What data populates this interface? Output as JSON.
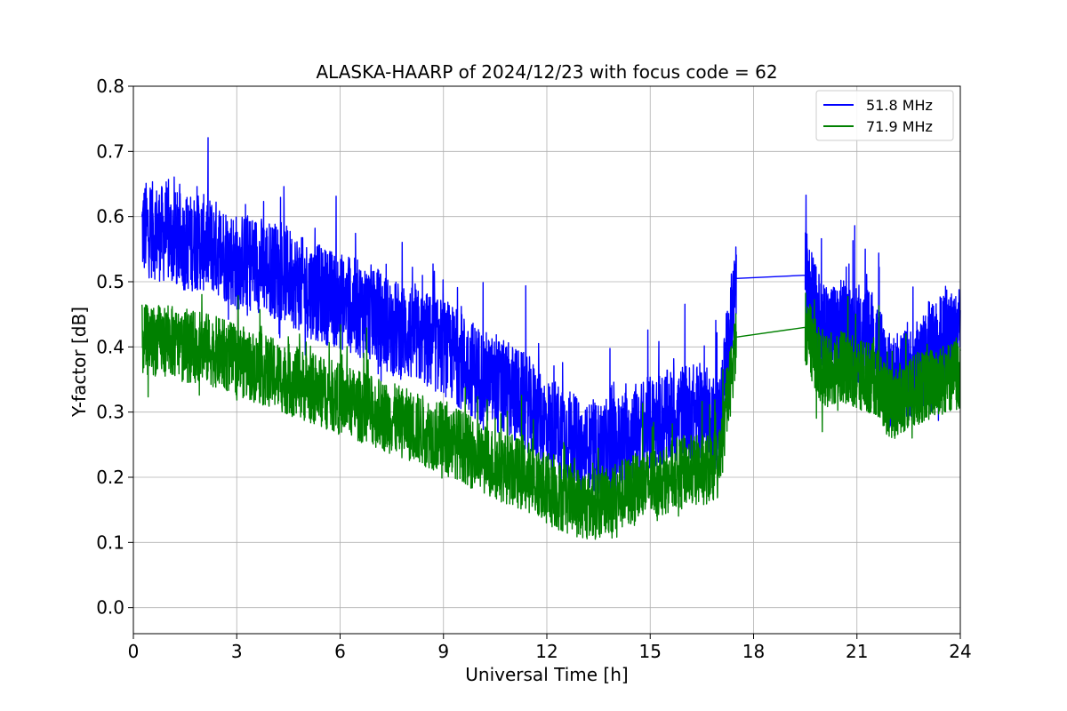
{
  "chart_data": {
    "type": "line",
    "title": "ALASKA-HAARP of 2024/12/23 with focus code = 62",
    "xlabel": "Universal Time [h]",
    "ylabel": "Y-factor [dB]",
    "xlim": [
      0,
      24
    ],
    "ylim": [
      -0.04,
      0.8
    ],
    "xticks": [
      0,
      3,
      6,
      9,
      12,
      15,
      18,
      21,
      24
    ],
    "xtick_labels": [
      "0",
      "3",
      "6",
      "9",
      "12",
      "15",
      "18",
      "21",
      "24"
    ],
    "yticks": [
      0.0,
      0.1,
      0.2,
      0.3,
      0.4,
      0.5,
      0.6,
      0.7,
      0.8
    ],
    "ytick_labels": [
      "0.0",
      "0.1",
      "0.2",
      "0.3",
      "0.4",
      "0.5",
      "0.6",
      "0.7",
      "0.8"
    ],
    "grid": true,
    "legend_position": "top-right",
    "series": [
      {
        "name": "51.8 MHz",
        "color": "#0000ff",
        "x": [
          0.25,
          0.5,
          1.0,
          1.5,
          2.0,
          2.5,
          3.0,
          3.5,
          4.0,
          4.5,
          5.0,
          5.5,
          6.0,
          6.5,
          7.0,
          7.5,
          8.0,
          8.5,
          9.0,
          9.5,
          10.0,
          10.5,
          11.0,
          11.5,
          12.0,
          12.5,
          13.0,
          13.5,
          14.0,
          14.5,
          15.0,
          15.5,
          16.0,
          16.5,
          17.0,
          17.5,
          19.5,
          20.0,
          20.5,
          21.0,
          21.5,
          22.0,
          22.5,
          23.0,
          23.5,
          24.0
        ],
        "y": [
          0.58,
          0.58,
          0.57,
          0.56,
          0.56,
          0.55,
          0.53,
          0.53,
          0.52,
          0.51,
          0.49,
          0.48,
          0.47,
          0.46,
          0.45,
          0.43,
          0.42,
          0.41,
          0.4,
          0.38,
          0.36,
          0.34,
          0.33,
          0.31,
          0.28,
          0.27,
          0.24,
          0.24,
          0.25,
          0.27,
          0.28,
          0.29,
          0.3,
          0.3,
          0.28,
          0.505,
          0.51,
          0.42,
          0.43,
          0.42,
          0.41,
          0.34,
          0.36,
          0.38,
          0.41,
          0.42
        ]
      },
      {
        "name": "71.9 MHz",
        "color": "#008000",
        "x": [
          0.25,
          0.5,
          1.0,
          1.5,
          2.0,
          2.5,
          3.0,
          3.5,
          4.0,
          4.5,
          5.0,
          5.5,
          6.0,
          6.5,
          7.0,
          7.5,
          8.0,
          8.5,
          9.0,
          9.5,
          10.0,
          10.5,
          11.0,
          11.5,
          12.0,
          12.5,
          13.0,
          13.5,
          14.0,
          14.5,
          15.0,
          15.5,
          16.0,
          16.5,
          17.0,
          17.5,
          19.5,
          20.0,
          20.5,
          21.0,
          21.5,
          22.0,
          22.5,
          23.0,
          23.5,
          24.0
        ],
        "y": [
          0.41,
          0.41,
          0.41,
          0.4,
          0.4,
          0.39,
          0.38,
          0.37,
          0.36,
          0.35,
          0.34,
          0.33,
          0.32,
          0.31,
          0.3,
          0.29,
          0.28,
          0.27,
          0.26,
          0.25,
          0.23,
          0.22,
          0.21,
          0.2,
          0.18,
          0.17,
          0.16,
          0.16,
          0.17,
          0.18,
          0.19,
          0.2,
          0.21,
          0.21,
          0.22,
          0.415,
          0.43,
          0.36,
          0.37,
          0.36,
          0.35,
          0.31,
          0.33,
          0.34,
          0.35,
          0.36
        ]
      }
    ]
  }
}
